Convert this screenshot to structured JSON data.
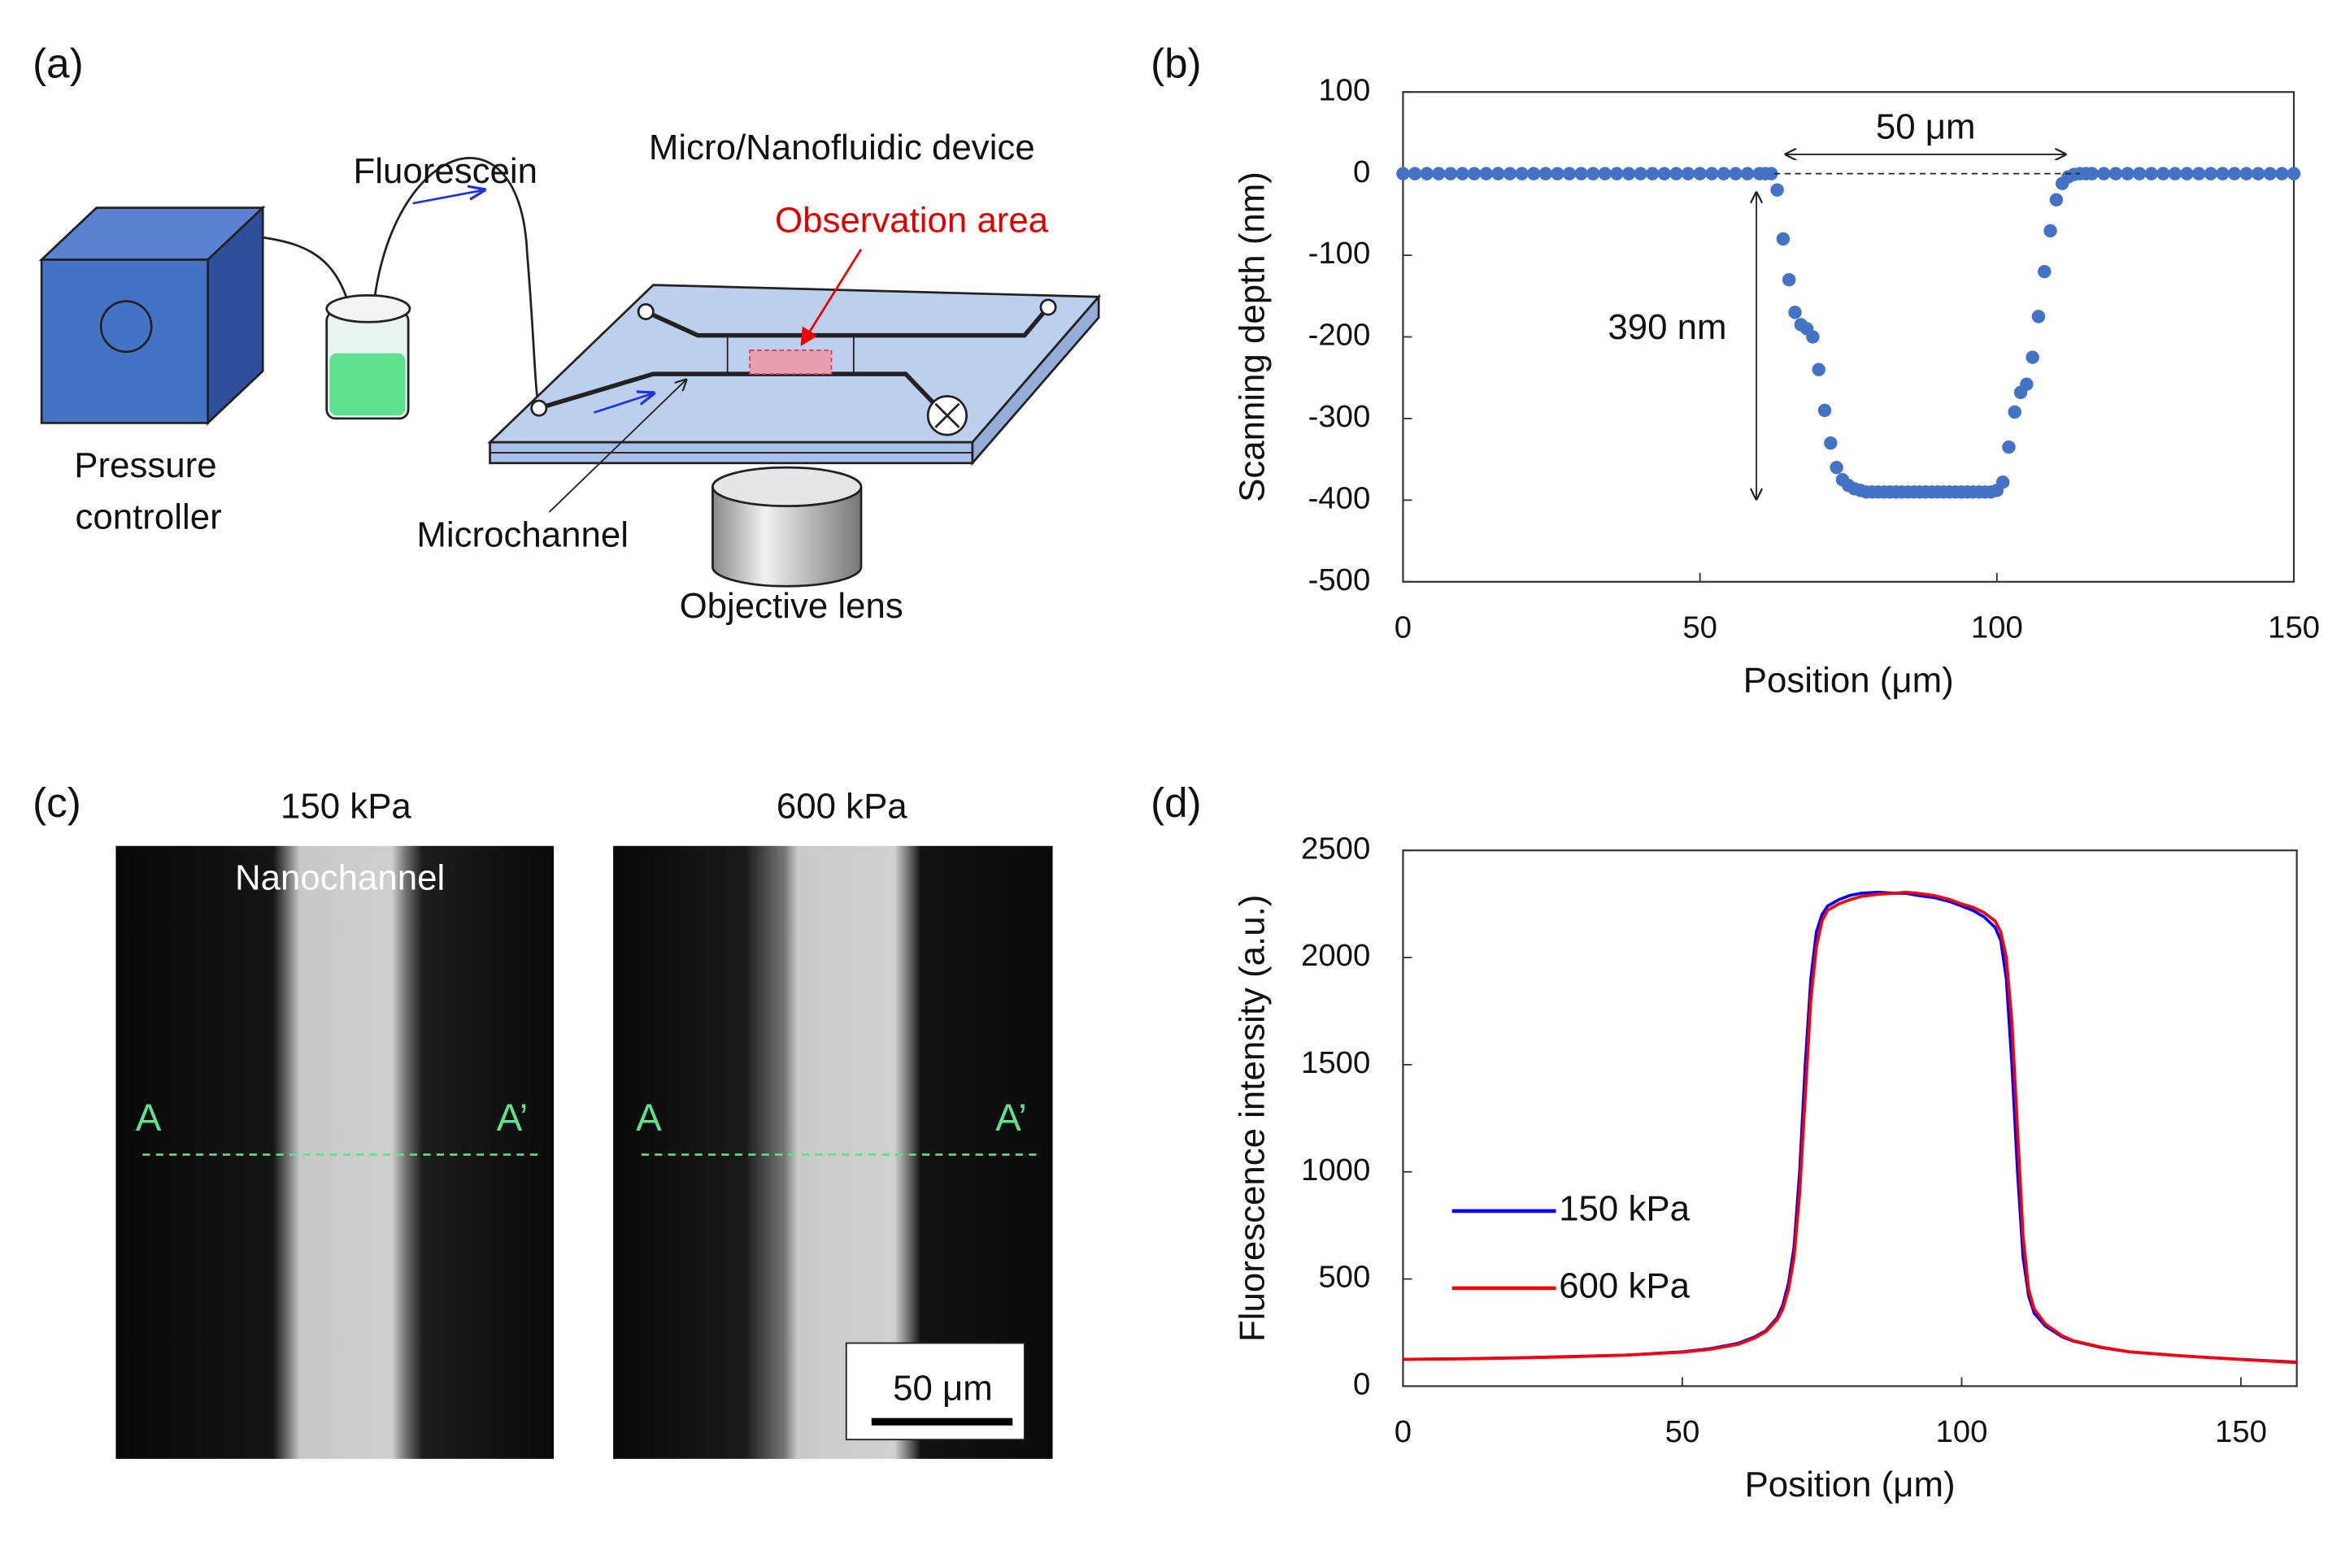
{
  "panel_labels": [
    "(a)",
    "(b)",
    "(c)",
    "(d)"
  ],
  "diagram": {
    "pressure_controller": [
      "Pressure",
      "controller"
    ],
    "fluorescein": "Fluorescein",
    "device": "Micro/Nanofluidic device",
    "observation_area": "Observation area",
    "microchannel": "Microchannel",
    "objective_lens": "Objective lens"
  },
  "images": {
    "panels": [
      "150 kPa",
      "600 kPa"
    ],
    "nanochannel": "Nanochannel",
    "line_start": "A",
    "line_end": "A’",
    "scale_bar": "50 μm"
  },
  "chart_data": [
    {
      "type": "scatter",
      "x_label": "Position (μm)",
      "y_label": "Scanning depth (nm)",
      "color": "#4472c4",
      "annotations": [
        "50 μm",
        "390 nm"
      ],
      "xlim": [
        0,
        150
      ],
      "ylim": [
        -500,
        100
      ],
      "xticks": [
        0,
        50,
        100,
        150
      ],
      "yticks": [
        -500,
        -400,
        -300,
        -200,
        -100,
        0,
        100
      ],
      "x": [
        0,
        2,
        4,
        6,
        8,
        10,
        12,
        14,
        16,
        18,
        20,
        22,
        24,
        26,
        28,
        30,
        32,
        34,
        36,
        38,
        40,
        42,
        44,
        46,
        48,
        50,
        52,
        54,
        56,
        58,
        60,
        61,
        62,
        63,
        64,
        65,
        66,
        67,
        68,
        69,
        70,
        71,
        72,
        73,
        74,
        75,
        76,
        77,
        78,
        79,
        80,
        81,
        82,
        83,
        84,
        85,
        86,
        87,
        88,
        89,
        90,
        91,
        92,
        93,
        94,
        95,
        96,
        97,
        98,
        99,
        100,
        101,
        102,
        103,
        104,
        105,
        106,
        107,
        108,
        109,
        110,
        111,
        112,
        113,
        114,
        115,
        116,
        118,
        120,
        122,
        124,
        126,
        128,
        130,
        132,
        134,
        136,
        138,
        140,
        142,
        144,
        146,
        148,
        150
      ],
      "y": [
        0,
        0,
        0,
        0,
        0,
        0,
        0,
        0,
        0,
        0,
        0,
        0,
        0,
        0,
        0,
        0,
        0,
        0,
        0,
        0,
        0,
        0,
        0,
        0,
        0,
        0,
        0,
        0,
        0,
        0,
        0,
        0,
        0,
        -20,
        -80,
        -130,
        -170,
        -185,
        -190,
        -200,
        -240,
        -290,
        -330,
        -360,
        -375,
        -382,
        -386,
        -388,
        -390,
        -390,
        -390,
        -390,
        -390,
        -390,
        -390,
        -390,
        -390,
        -390,
        -390,
        -390,
        -390,
        -390,
        -390,
        -390,
        -390,
        -390,
        -390,
        -390,
        -390,
        -390,
        -388,
        -378,
        -335,
        -292,
        -268,
        -258,
        -225,
        -175,
        -120,
        -70,
        -32,
        -12,
        -4,
        -1,
        0,
        0,
        0,
        0,
        0,
        0,
        0,
        0,
        0,
        0,
        0,
        0,
        0,
        0,
        0,
        0,
        0,
        0,
        0,
        0
      ]
    },
    {
      "type": "line",
      "x_label": "Position (μm)",
      "y_label": "Fluorescence intensity (a.u.)",
      "legend": "lower left",
      "xlim": [
        0,
        160
      ],
      "ylim": [
        0,
        2500
      ],
      "xticks": [
        0,
        50,
        100,
        150
      ],
      "yticks": [
        0,
        500,
        1000,
        1500,
        2000,
        2500
      ],
      "x": [
        0,
        10,
        20,
        30,
        40,
        50,
        55,
        60,
        63,
        65,
        67,
        68,
        69,
        70,
        71,
        72,
        73,
        74,
        75,
        76,
        78,
        80,
        82,
        85,
        88,
        90,
        92,
        95,
        98,
        100,
        102,
        104,
        106,
        107,
        108,
        109,
        110,
        111,
        112,
        113,
        115,
        118,
        120,
        125,
        130,
        140,
        150,
        160
      ],
      "series": [
        {
          "name": "150 kPa",
          "color": "#0000ff",
          "values": [
            125,
            128,
            132,
            138,
            145,
            160,
            175,
            200,
            230,
            260,
            320,
            380,
            480,
            650,
            1000,
            1500,
            1900,
            2120,
            2200,
            2240,
            2270,
            2290,
            2300,
            2305,
            2300,
            2300,
            2290,
            2280,
            2260,
            2240,
            2220,
            2190,
            2140,
            2080,
            1900,
            1500,
            1000,
            600,
            420,
            340,
            280,
            230,
            210,
            180,
            160,
            140,
            125,
            112
          ]
        },
        {
          "name": "600 kPa",
          "color": "#ff0000",
          "values": [
            125,
            127,
            131,
            137,
            145,
            158,
            172,
            195,
            225,
            255,
            310,
            360,
            450,
            600,
            900,
            1350,
            1800,
            2050,
            2170,
            2220,
            2250,
            2270,
            2285,
            2295,
            2300,
            2305,
            2300,
            2290,
            2270,
            2250,
            2235,
            2210,
            2170,
            2120,
            2000,
            1700,
            1200,
            700,
            450,
            360,
            290,
            235,
            212,
            182,
            160,
            140,
            124,
            110
          ]
        }
      ]
    }
  ]
}
